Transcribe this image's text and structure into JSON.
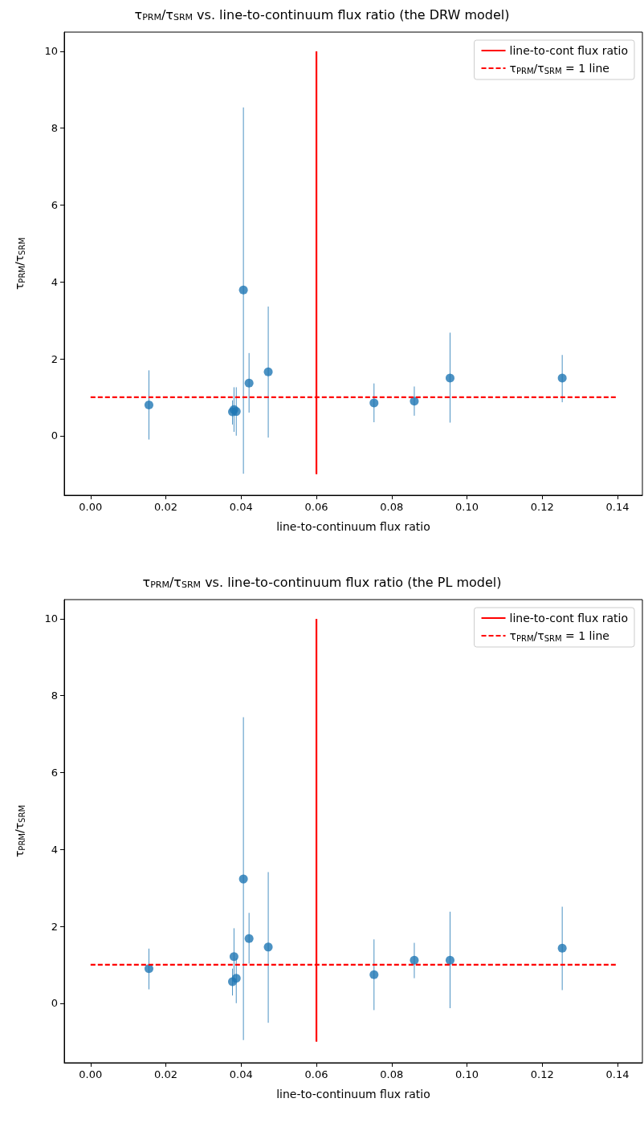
{
  "chart_data": [
    {
      "type": "scatter",
      "title": "τ$_{PRM}$/τ$_{SRM}$ vs. line-to-continuum flux ratio (the DRW model)",
      "xlabel": "line-to-continuum flux ratio",
      "ylabel": "τ$_{PRM}$/τ$_{SRM}$",
      "xlim": [
        -0.007,
        0.1466
      ],
      "ylim": [
        -1.55,
        10.5
      ],
      "xticks": [
        {
          "value": 0,
          "label": "0.00"
        },
        {
          "value": 0.02,
          "label": "0.02"
        },
        {
          "value": 0.04,
          "label": "0.04"
        },
        {
          "value": 0.06,
          "label": "0.06"
        },
        {
          "value": 0.08,
          "label": "0.08"
        },
        {
          "value": 0.1,
          "label": "0.10"
        },
        {
          "value": 0.12,
          "label": "0.12"
        },
        {
          "value": 0.14,
          "label": "0.14"
        }
      ],
      "yticks": [
        0,
        2,
        4,
        6,
        8,
        10
      ],
      "grid": false,
      "legend": "top right",
      "series": [
        {
          "color": "#1f77b4",
          "marker": "circle",
          "x": [
            0.0155,
            0.0377,
            0.0381,
            0.0387,
            0.0406,
            0.0421,
            0.0472,
            0.0753,
            0.086,
            0.0955,
            0.1253
          ],
          "values": [
            0.8,
            0.62,
            0.68,
            0.63,
            3.79,
            1.37,
            1.66,
            0.85,
            0.9,
            1.5,
            1.5
          ],
          "errors": [
            [
              -0.1,
              1.7
            ],
            [
              0.29,
              0.92
            ],
            [
              0.1,
              1.26
            ],
            [
              0.0,
              1.26
            ],
            [
              -0.99,
              8.54
            ],
            [
              0.6,
              2.15
            ],
            [
              -0.05,
              3.36
            ],
            [
              0.35,
              1.36
            ],
            [
              0.52,
              1.28
            ],
            [
              0.34,
              2.68
            ],
            [
              0.87,
              2.1
            ]
          ]
        },
        {
          "type": "line",
          "name": "line-to-cont flux ratio",
          "color": "#ff0000",
          "marker": "none",
          "line_style": "solid",
          "x": [
            0.06,
            0.06
          ],
          "values": [
            -1,
            10
          ]
        },
        {
          "type": "line",
          "name": "τ$_{PRM}$/τ$_{SRM}$ = 1 line",
          "color": "#ff0000",
          "marker": "none",
          "line_style": "dashed",
          "x": [
            0,
            0.14
          ],
          "values": [
            1,
            1
          ]
        }
      ]
    },
    {
      "type": "scatter",
      "title": "τ$_{PRM}$/τ$_{SRM}$ vs. line-to-continuum flux ratio (the PL model)",
      "xlabel": "line-to-continuum flux ratio",
      "ylabel": "τ$_{PRM}$/τ$_{SRM}$",
      "xlim": [
        -0.007,
        0.1466
      ],
      "ylim": [
        -1.55,
        10.5
      ],
      "xticks": [
        {
          "value": 0,
          "label": "0.00"
        },
        {
          "value": 0.02,
          "label": "0.02"
        },
        {
          "value": 0.04,
          "label": "0.04"
        },
        {
          "value": 0.06,
          "label": "0.06"
        },
        {
          "value": 0.08,
          "label": "0.08"
        },
        {
          "value": 0.1,
          "label": "0.10"
        },
        {
          "value": 0.12,
          "label": "0.12"
        },
        {
          "value": 0.14,
          "label": "0.14"
        }
      ],
      "yticks": [
        0,
        2,
        4,
        6,
        8,
        10
      ],
      "grid": false,
      "legend": "top right",
      "series": [
        {
          "color": "#1f77b4",
          "marker": "circle",
          "x": [
            0.0155,
            0.0377,
            0.0381,
            0.0387,
            0.0406,
            0.0421,
            0.0472,
            0.0753,
            0.086,
            0.0955,
            0.1253
          ],
          "values": [
            0.9,
            0.56,
            1.21,
            0.65,
            3.23,
            1.68,
            1.46,
            0.74,
            1.12,
            1.12,
            1.43
          ],
          "errors": [
            [
              0.36,
              1.42
            ],
            [
              0.2,
              0.9
            ],
            [
              0.5,
              1.95
            ],
            [
              0.0,
              1.17
            ],
            [
              -0.96,
              7.44
            ],
            [
              1.03,
              2.35
            ],
            [
              -0.51,
              3.41
            ],
            [
              -0.18,
              1.66
            ],
            [
              0.65,
              1.57
            ],
            [
              -0.13,
              2.38
            ],
            [
              0.34,
              2.51
            ]
          ]
        },
        {
          "type": "line",
          "name": "line-to-cont flux ratio",
          "color": "#ff0000",
          "marker": "none",
          "line_style": "solid",
          "x": [
            0.06,
            0.06
          ],
          "values": [
            -1,
            10
          ]
        },
        {
          "type": "line",
          "name": "τ$_{PRM}$/τ$_{SRM}$ = 1 line",
          "color": "#ff0000",
          "marker": "none",
          "line_style": "dashed",
          "x": [
            0,
            0.14
          ],
          "values": [
            1,
            1
          ]
        }
      ]
    }
  ]
}
